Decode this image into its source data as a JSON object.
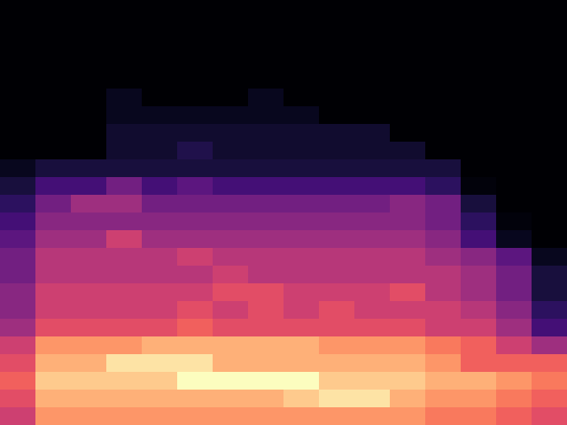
{
  "chart_data": {
    "type": "heatmap",
    "color": "magma",
    "tick_labels": false,
    "cells": [
      [
        0,
        0,
        0,
        0,
        0,
        0,
        0,
        0,
        0,
        0,
        0,
        0,
        0,
        0,
        0,
        0
      ],
      [
        0,
        0,
        0,
        0,
        0,
        0,
        0,
        0,
        0,
        0,
        0,
        0,
        0,
        0,
        0,
        0
      ],
      [
        0,
        0,
        0,
        0,
        0,
        0,
        0,
        0,
        0,
        0,
        0,
        0,
        0,
        0,
        0,
        0
      ],
      [
        0,
        0,
        0,
        0,
        0,
        0,
        0,
        0,
        0,
        0,
        0,
        0,
        0,
        0,
        0,
        0
      ],
      [
        0,
        0,
        0,
        0,
        0,
        0,
        0,
        0,
        0,
        0,
        0,
        0,
        0,
        0,
        0,
        0
      ],
      [
        0,
        0,
        0,
        0.05,
        0,
        0,
        0,
        0.05,
        0,
        0,
        0,
        0,
        0,
        0,
        0,
        0
      ],
      [
        0,
        0,
        0,
        0.05,
        0.05,
        0.05,
        0.05,
        0.05,
        0.05,
        0,
        0,
        0,
        0,
        0,
        0,
        0
      ],
      [
        0,
        0,
        0,
        0.08,
        0.08,
        0.08,
        0.08,
        0.08,
        0.08,
        0.08,
        0.08,
        0,
        0,
        0,
        0,
        0
      ],
      [
        0,
        0,
        0,
        0.08,
        0.08,
        0.12,
        0.08,
        0.08,
        0.08,
        0.08,
        0.08,
        0.08,
        0,
        0,
        0,
        0
      ],
      [
        0.05,
        0.1,
        0.1,
        0.1,
        0.1,
        0.1,
        0.1,
        0.1,
        0.1,
        0.1,
        0.1,
        0.1,
        0.1,
        0,
        0,
        0
      ],
      [
        0.1,
        0.2,
        0.2,
        0.3,
        0.2,
        0.25,
        0.2,
        0.2,
        0.2,
        0.2,
        0.2,
        0.2,
        0.15,
        0.02,
        0,
        0
      ],
      [
        0.15,
        0.3,
        0.4,
        0.4,
        0.3,
        0.3,
        0.3,
        0.3,
        0.3,
        0.3,
        0.3,
        0.35,
        0.3,
        0.1,
        0,
        0
      ],
      [
        0.2,
        0.35,
        0.35,
        0.35,
        0.35,
        0.35,
        0.35,
        0.35,
        0.35,
        0.35,
        0.35,
        0.35,
        0.3,
        0.15,
        0.02,
        0
      ],
      [
        0.25,
        0.4,
        0.4,
        0.5,
        0.4,
        0.4,
        0.4,
        0.4,
        0.4,
        0.4,
        0.4,
        0.4,
        0.35,
        0.2,
        0.05,
        0
      ],
      [
        0.3,
        0.45,
        0.45,
        0.45,
        0.45,
        0.5,
        0.45,
        0.45,
        0.45,
        0.45,
        0.45,
        0.45,
        0.4,
        0.35,
        0.25,
        0.05
      ],
      [
        0.3,
        0.45,
        0.45,
        0.45,
        0.45,
        0.45,
        0.5,
        0.45,
        0.45,
        0.45,
        0.45,
        0.45,
        0.45,
        0.4,
        0.3,
        0.1
      ],
      [
        0.35,
        0.5,
        0.5,
        0.5,
        0.5,
        0.5,
        0.55,
        0.55,
        0.5,
        0.5,
        0.5,
        0.55,
        0.45,
        0.4,
        0.3,
        0.1
      ],
      [
        0.35,
        0.5,
        0.5,
        0.5,
        0.5,
        0.55,
        0.5,
        0.55,
        0.5,
        0.55,
        0.5,
        0.5,
        0.5,
        0.45,
        0.35,
        0.15
      ],
      [
        0.4,
        0.55,
        0.55,
        0.55,
        0.55,
        0.6,
        0.55,
        0.55,
        0.55,
        0.55,
        0.55,
        0.55,
        0.5,
        0.5,
        0.4,
        0.2
      ],
      [
        0.5,
        0.7,
        0.7,
        0.7,
        0.75,
        0.75,
        0.75,
        0.75,
        0.75,
        0.7,
        0.7,
        0.7,
        0.65,
        0.6,
        0.5,
        0.4
      ],
      [
        0.55,
        0.75,
        0.75,
        0.85,
        0.85,
        0.85,
        0.75,
        0.75,
        0.75,
        0.75,
        0.75,
        0.75,
        0.7,
        0.6,
        0.6,
        0.6
      ],
      [
        0.6,
        0.8,
        0.8,
        0.8,
        0.8,
        0.9,
        0.9,
        0.9,
        0.9,
        0.8,
        0.8,
        0.8,
        0.75,
        0.75,
        0.7,
        0.65
      ],
      [
        0.55,
        0.75,
        0.75,
        0.75,
        0.75,
        0.75,
        0.75,
        0.75,
        0.8,
        0.85,
        0.85,
        0.75,
        0.7,
        0.7,
        0.65,
        0.6
      ],
      [
        0.5,
        0.7,
        0.7,
        0.7,
        0.7,
        0.7,
        0.7,
        0.7,
        0.7,
        0.7,
        0.7,
        0.7,
        0.65,
        0.65,
        0.6,
        0.55
      ]
    ]
  }
}
